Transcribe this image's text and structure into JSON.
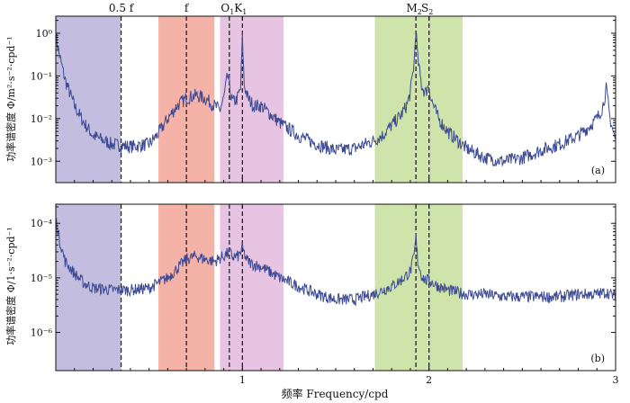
{
  "chart_data": [
    {
      "id": "a",
      "type": "line",
      "panel_label": "(a)",
      "ylabel": "功率谱密度 Φ/m²·s⁻²·cpd⁻¹",
      "xlabel": "",
      "xlim": [
        0,
        3
      ],
      "ylim_log10": [
        -3.5,
        0.4
      ],
      "yticks": [
        {
          "exp": 0,
          "label": "10⁰"
        },
        {
          "exp": -1,
          "label": "10⁻¹"
        },
        {
          "exp": -2,
          "label": "10⁻²"
        },
        {
          "exp": -3,
          "label": "10⁻³"
        }
      ],
      "x": [
        0.0,
        0.02,
        0.05,
        0.1,
        0.15,
        0.2,
        0.3,
        0.4,
        0.5,
        0.55,
        0.6,
        0.65,
        0.7,
        0.75,
        0.8,
        0.85,
        0.88,
        0.9,
        0.92,
        0.93,
        0.94,
        0.95,
        0.97,
        0.99,
        1.0,
        1.01,
        1.03,
        1.06,
        1.1,
        1.2,
        1.3,
        1.4,
        1.5,
        1.6,
        1.7,
        1.75,
        1.8,
        1.85,
        1.88,
        1.9,
        1.92,
        1.93,
        1.94,
        1.96,
        1.98,
        1.99,
        2.0,
        2.01,
        2.05,
        2.1,
        2.2,
        2.3,
        2.4,
        2.5,
        2.6,
        2.7,
        2.8,
        2.85,
        2.9,
        2.93,
        2.95,
        2.97,
        3.0
      ],
      "values": [
        0.9,
        0.3,
        0.08,
        0.02,
        0.008,
        0.004,
        0.0025,
        0.0022,
        0.0025,
        0.0045,
        0.01,
        0.02,
        0.03,
        0.035,
        0.03,
        0.02,
        0.016,
        0.03,
        0.1,
        0.07,
        0.03,
        0.025,
        0.028,
        0.05,
        0.8,
        0.06,
        0.03,
        0.02,
        0.02,
        0.008,
        0.004,
        0.0025,
        0.0018,
        0.002,
        0.003,
        0.004,
        0.007,
        0.012,
        0.02,
        0.04,
        0.2,
        1.3,
        0.25,
        0.06,
        0.04,
        0.05,
        0.06,
        0.03,
        0.01,
        0.005,
        0.002,
        0.0012,
        0.001,
        0.0012,
        0.0018,
        0.0025,
        0.004,
        0.006,
        0.01,
        0.018,
        0.05,
        0.01,
        0.003
      ]
    },
    {
      "id": "b",
      "type": "line",
      "panel_label": "(b)",
      "ylabel": "功率谱密度 Φ/1·s⁻²·cpd⁻¹",
      "xlabel": "频率 Frequency/cpd",
      "xlim": [
        0,
        3
      ],
      "ylim_log10": [
        -6.7,
        -3.65
      ],
      "yticks": [
        {
          "exp": -4,
          "label": "10⁻⁴"
        },
        {
          "exp": -5,
          "label": "10⁻⁵"
        },
        {
          "exp": -6,
          "label": "10⁻⁶"
        }
      ],
      "x": [
        0.0,
        0.02,
        0.05,
        0.1,
        0.15,
        0.2,
        0.3,
        0.4,
        0.5,
        0.6,
        0.7,
        0.75,
        0.8,
        0.85,
        0.9,
        0.93,
        0.95,
        0.98,
        1.0,
        1.02,
        1.05,
        1.1,
        1.2,
        1.3,
        1.4,
        1.5,
        1.6,
        1.7,
        1.8,
        1.85,
        1.9,
        1.92,
        1.93,
        1.94,
        1.96,
        1.98,
        2.0,
        2.05,
        2.1,
        2.2,
        2.3,
        2.4,
        2.5,
        2.6,
        2.7,
        2.8,
        2.9,
        2.95,
        3.0
      ],
      "values": [
        0.00012,
        5e-05,
        2e-05,
        1.2e-05,
        8e-06,
        6.5e-06,
        6e-06,
        6e-06,
        6.5e-06,
        1e-05,
        2.2e-05,
        2.5e-05,
        2.2e-05,
        2e-05,
        2.5e-05,
        3e-05,
        2.4e-05,
        2.5e-05,
        3.5e-05,
        2.2e-05,
        1.8e-05,
        1.6e-05,
        1e-05,
        7e-06,
        5e-06,
        4e-06,
        4e-06,
        5e-06,
        7e-06,
        9e-06,
        1.3e-05,
        2.5e-05,
        5.5e-05,
        2e-05,
        1.1e-05,
        9e-06,
        9e-06,
        7e-06,
        6e-06,
        5e-06,
        5e-06,
        4.5e-06,
        4.5e-06,
        4.5e-06,
        4.5e-06,
        5e-06,
        5e-06,
        5.5e-06,
        4.5e-06
      ]
    }
  ],
  "shared": {
    "xticks": [
      {
        "value": 1,
        "label": "1"
      },
      {
        "value": 2,
        "label": "2"
      },
      {
        "value": 3,
        "label": "3"
      }
    ],
    "bands": [
      {
        "name": "band-subinertial",
        "from": 0.0,
        "to": 0.35,
        "color": "#c3bedf"
      },
      {
        "name": "band-inertial",
        "from": 0.55,
        "to": 0.85,
        "color": "#f5b3a8"
      },
      {
        "name": "band-diurnal",
        "from": 0.88,
        "to": 1.22,
        "color": "#e6c4e2"
      },
      {
        "name": "band-semidiurnal",
        "from": 1.71,
        "to": 2.18,
        "color": "#cfe4ab"
      }
    ],
    "markers": [
      {
        "name": "half-f",
        "label": "0.5 f",
        "value": 0.35
      },
      {
        "name": "f",
        "label": "f",
        "value": 0.7
      },
      {
        "name": "O1",
        "label": "O",
        "sub": "1",
        "value": 0.93
      },
      {
        "name": "K1",
        "label": "K",
        "sub": "1",
        "value": 1.0
      },
      {
        "name": "M2",
        "label": "M",
        "sub": "2",
        "value": 1.93
      },
      {
        "name": "S2",
        "label": "S",
        "sub": "2",
        "value": 2.0
      }
    ],
    "series_color": "#3d4a94"
  }
}
